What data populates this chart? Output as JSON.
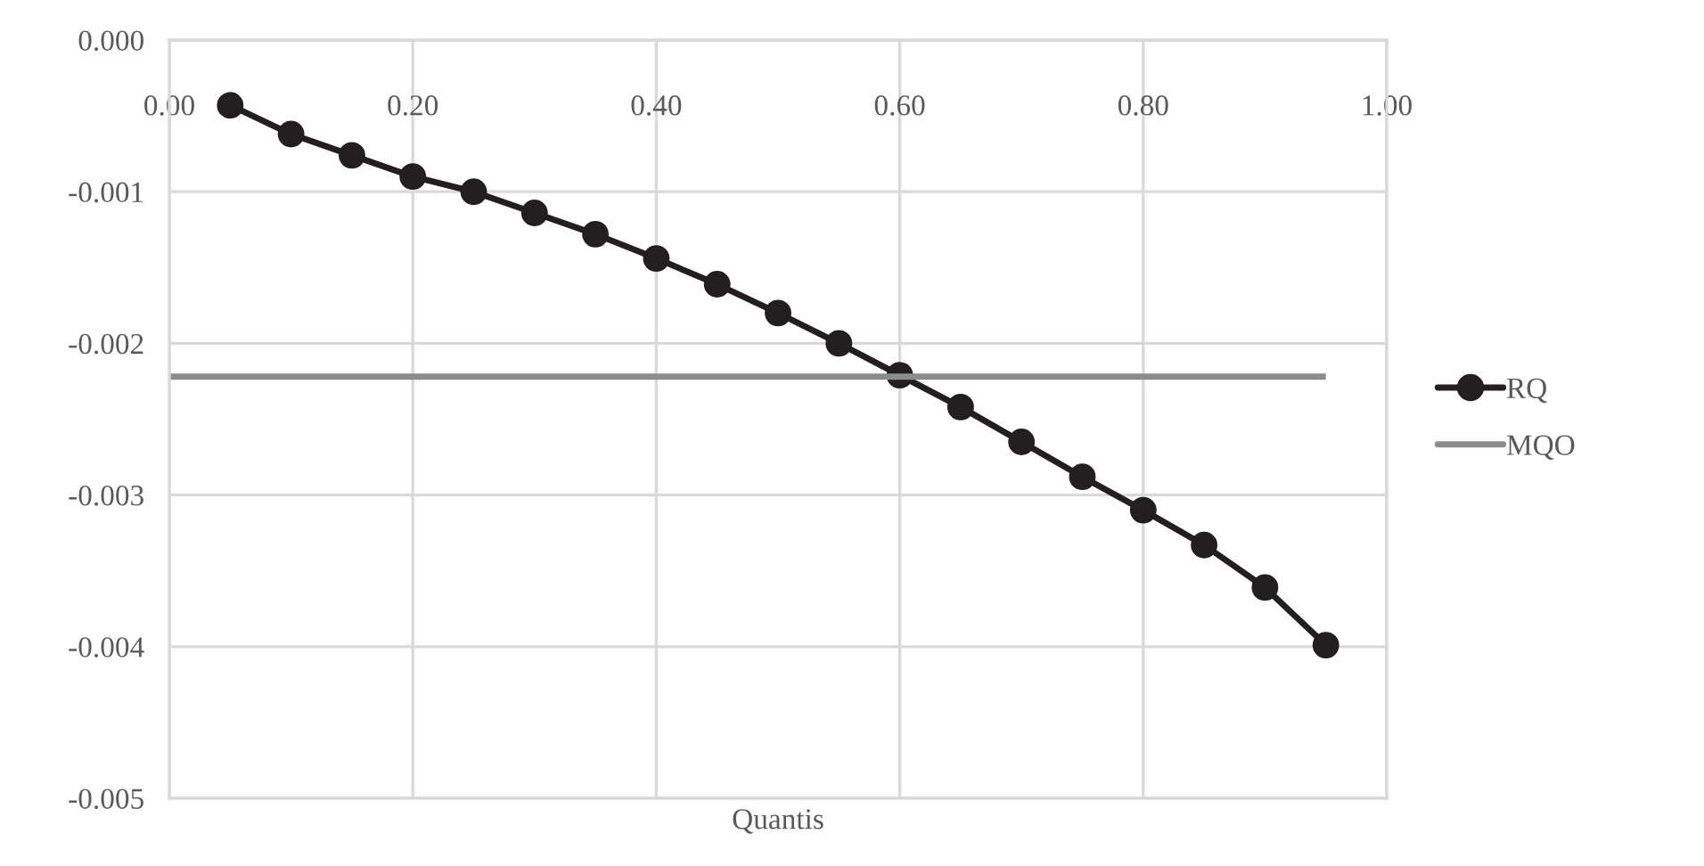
{
  "chart_data": {
    "type": "line",
    "xlabel": "Quantis",
    "xlim": [
      0,
      1
    ],
    "xticks": [
      {
        "value": 0,
        "label": "0.00"
      },
      {
        "value": 0.2,
        "label": "0.20"
      },
      {
        "value": 0.4,
        "label": "0.40"
      },
      {
        "value": 0.6,
        "label": "0.60"
      },
      {
        "value": 0.8,
        "label": "0.80"
      },
      {
        "value": 1,
        "label": "1.00"
      }
    ],
    "ylim": [
      -0.005,
      0
    ],
    "yticks": [
      {
        "value": 0,
        "label": "0.000"
      },
      {
        "value": -0.001,
        "label": "-0.001"
      },
      {
        "value": -0.002,
        "label": "-0.002"
      },
      {
        "value": -0.003,
        "label": "-0.003"
      },
      {
        "value": -0.004,
        "label": "-0.004"
      },
      {
        "value": -0.005,
        "label": "-0.005"
      }
    ],
    "grid": true,
    "legend": "right",
    "series": [
      {
        "name": "RQ",
        "color": "#231f20",
        "marker": "circle",
        "x": [
          0.05,
          0.1,
          0.15,
          0.2,
          0.25,
          0.3,
          0.35,
          0.4,
          0.45,
          0.5,
          0.55,
          0.6,
          0.65,
          0.7,
          0.75,
          0.8,
          0.85,
          0.9,
          0.95
        ],
        "values": [
          -0.00043,
          -0.00062,
          -0.00076,
          -0.0009,
          -0.001,
          -0.00114,
          -0.00128,
          -0.00144,
          -0.00161,
          -0.0018,
          -0.002,
          -0.00221,
          -0.00242,
          -0.00265,
          -0.00288,
          -0.0031,
          -0.00333,
          -0.00361,
          -0.00399
        ]
      },
      {
        "name": "MQO",
        "color": "#8c8c8c",
        "marker": "none",
        "x": [
          0,
          0.95
        ],
        "values": [
          -0.00222,
          -0.00222
        ]
      }
    ]
  }
}
